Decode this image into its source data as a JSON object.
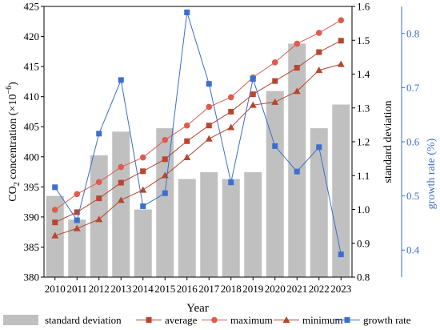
{
  "chart_data": {
    "type": "bar+line",
    "categories": [
      "2010",
      "2011",
      "2012",
      "2013",
      "2014",
      "2015",
      "2016",
      "2017",
      "2018",
      "2019",
      "2020",
      "2021",
      "2022",
      "2023"
    ],
    "x_title": "Year",
    "left_axis": {
      "ylabel_main": "CO",
      "ylabel_sub": "2",
      "ylabel_rest": " concentration (×10",
      "ylabel_sup": "−6",
      "ylabel_end": ")",
      "ylim": [
        380,
        425
      ],
      "ticks": [
        "380",
        "385",
        "390",
        "395",
        "400",
        "405",
        "410",
        "415",
        "420",
        "425"
      ]
    },
    "right_axis": {
      "ylabel": "standard deviation",
      "ylim": [
        0.8,
        1.6
      ],
      "ticks": [
        "0.8",
        "0.9",
        "1.0",
        "1.1",
        "1.2",
        "1.3",
        "1.4",
        "1.5",
        "1.6"
      ]
    },
    "growth_axis": {
      "ylabel": "growth rate (%)",
      "ylim": [
        0.35,
        0.85
      ],
      "ticks": [
        "0.4",
        "0.5",
        "0.6",
        "0.7",
        "0.8"
      ]
    },
    "series": [
      {
        "name": "standard deviation",
        "kind": "bar",
        "axis": "right",
        "color": "#c0c0c0",
        "values": [
          1.04,
          0.97,
          1.16,
          1.23,
          1.0,
          1.24,
          1.09,
          1.11,
          1.09,
          1.11,
          1.35,
          1.49,
          1.24,
          1.31
        ]
      },
      {
        "name": "average",
        "kind": "line",
        "axis": "left",
        "marker": "square",
        "color": "#b8452f",
        "values": [
          389.1,
          390.8,
          393.1,
          395.7,
          397.6,
          399.6,
          402.6,
          405.2,
          407.5,
          410.4,
          412.6,
          414.8,
          417.4,
          419.3
        ]
      },
      {
        "name": "maximum",
        "kind": "line",
        "axis": "left",
        "marker": "circle",
        "color": "#e05a4f",
        "values": [
          391.2,
          393.8,
          395.8,
          398.3,
          399.9,
          402.8,
          405.2,
          408.3,
          409.9,
          413.2,
          415.7,
          418.8,
          420.6,
          422.7
        ]
      },
      {
        "name": "minimum",
        "kind": "line",
        "axis": "left",
        "marker": "triangle",
        "color": "#b8452f",
        "values": [
          386.9,
          388.1,
          389.6,
          392.8,
          394.5,
          396.9,
          399.9,
          403.0,
          404.9,
          408.6,
          409.1,
          410.9,
          414.4,
          415.4
        ]
      },
      {
        "name": "growth rate",
        "kind": "line",
        "axis": "growth",
        "marker": "square",
        "color": "#3a6ecf",
        "values": [
          0.516,
          0.455,
          0.615,
          0.714,
          0.481,
          0.505,
          0.839,
          0.707,
          0.525,
          0.716,
          0.592,
          0.545,
          0.59,
          0.392
        ]
      }
    ],
    "legend_position": "bottom",
    "grid": false
  }
}
